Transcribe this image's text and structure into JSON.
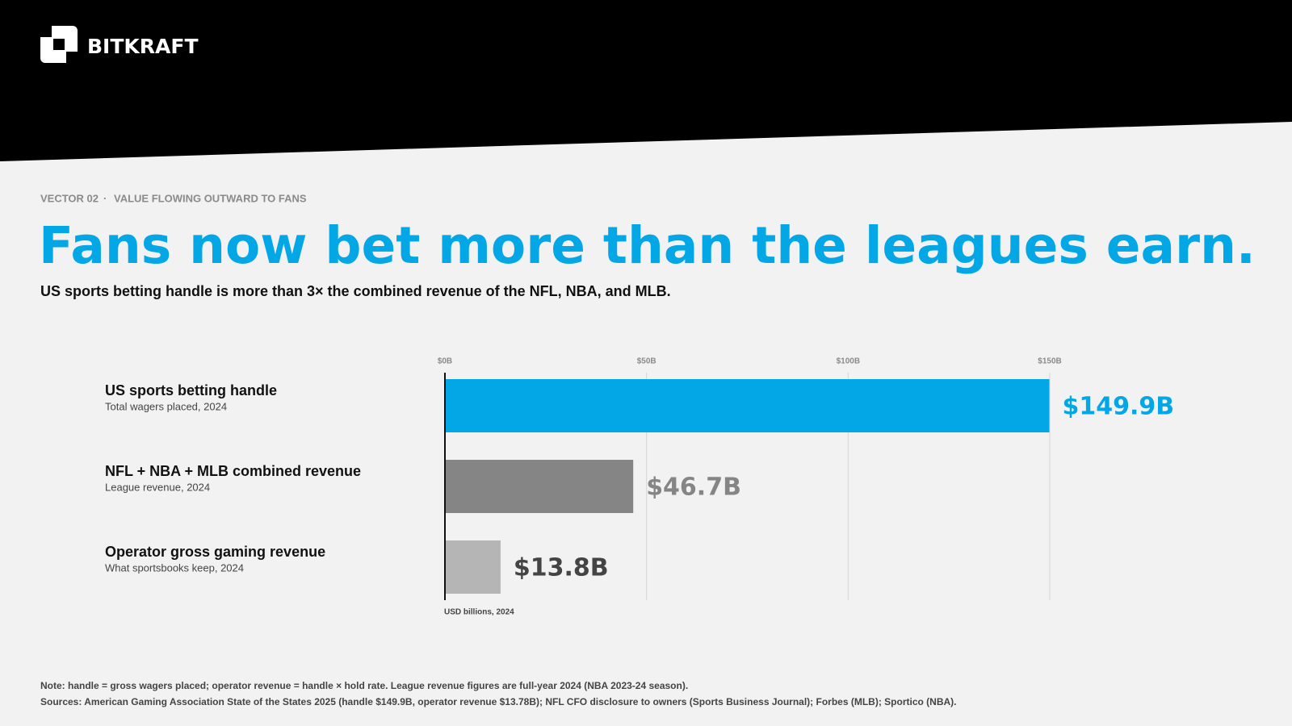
{
  "brand": "BITKRAFT",
  "eyebrow": {
    "section": "VECTOR 02",
    "separator": "·",
    "topic": "VALUE FLOWING OUTWARD TO FANS"
  },
  "title": "Fans now bet more than the leagues earn.",
  "subtitle": "US sports betting handle is more than 3× the combined revenue of the NFL, NBA, and MLB.",
  "chart_data": {
    "type": "hbar",
    "categories": [
      "US sports betting handle",
      "NFL + NBA + MLB combined revenue",
      "Operator gross gaming revenue"
    ],
    "category_subtitles": [
      "Total wagers placed, 2024",
      "League revenue, 2024",
      "What sportsbooks keep, 2024"
    ],
    "values": [
      149.9,
      46.7,
      13.8
    ],
    "value_labels": [
      "$149.9B",
      "$46.7B",
      "$13.8B"
    ],
    "colors": [
      "#04a7e6",
      "#858585",
      "#b5b5b5"
    ],
    "label_colors": [
      "#04a7e6",
      "#858585",
      "#444444"
    ],
    "xlim": [
      0,
      150
    ],
    "xticks": [
      {
        "value": 0,
        "label": "$0B"
      },
      {
        "value": 50,
        "label": "$50B"
      },
      {
        "value": 100,
        "label": "$100B"
      },
      {
        "value": 150,
        "label": "$150B"
      }
    ],
    "x_label": "USD billions, 2024",
    "grid": true
  },
  "notes": [
    "Note: handle = gross wagers placed; operator revenue = handle × hold rate. League revenue figures are full-year 2024 (NBA 2023-24 season).",
    "Sources: American Gaming Association State of the States 2025 (handle $149.9B, operator revenue $13.78B); NFL CFO disclosure to owners (Sports Business Journal); Forbes (MLB); Sportico (NBA)."
  ]
}
